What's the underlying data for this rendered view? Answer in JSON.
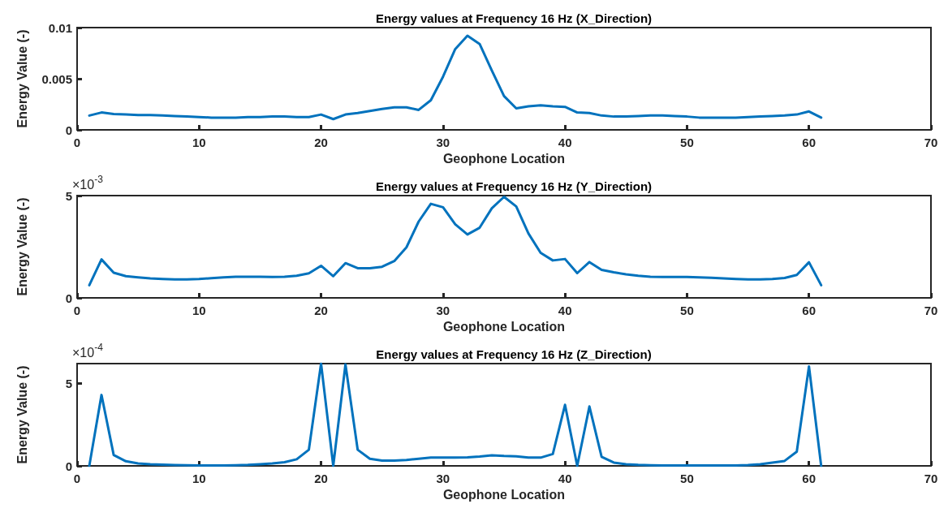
{
  "chart_data": [
    {
      "type": "line",
      "title": "Energy values at Frequency 16 Hz (X_Direction)",
      "xlabel": "Geophone Location",
      "ylabel": "Energy Value (-)",
      "x": [
        1,
        2,
        3,
        4,
        5,
        6,
        7,
        8,
        9,
        10,
        11,
        12,
        13,
        14,
        15,
        16,
        17,
        18,
        19,
        20,
        21,
        22,
        23,
        24,
        25,
        26,
        27,
        28,
        29,
        30,
        31,
        32,
        33,
        34,
        35,
        36,
        37,
        38,
        39,
        40,
        41,
        42,
        43,
        44,
        45,
        46,
        47,
        48,
        49,
        50,
        51,
        52,
        53,
        54,
        55,
        56,
        57,
        58,
        59,
        60,
        61
      ],
      "series": [
        {
          "color": "#0072bd",
          "values": [
            0.0014,
            0.0017,
            0.00155,
            0.0015,
            0.00145,
            0.00145,
            0.0014,
            0.00135,
            0.0013,
            0.00125,
            0.0012,
            0.0012,
            0.0012,
            0.00125,
            0.00125,
            0.0013,
            0.0013,
            0.00125,
            0.00125,
            0.0015,
            0.00105,
            0.0015,
            0.00165,
            0.00185,
            0.00205,
            0.0022,
            0.0022,
            0.00195,
            0.0029,
            0.0052,
            0.0079,
            0.0092,
            0.0084,
            0.0058,
            0.0033,
            0.0021,
            0.0023,
            0.0024,
            0.0023,
            0.00225,
            0.0017,
            0.00165,
            0.0014,
            0.0013,
            0.0013,
            0.00135,
            0.0014,
            0.0014,
            0.00135,
            0.0013,
            0.0012,
            0.0012,
            0.0012,
            0.0012,
            0.00125,
            0.0013,
            0.00135,
            0.0014,
            0.0015,
            0.0018,
            0.0012
          ]
        }
      ],
      "xlim": [
        0,
        70
      ],
      "xticks": [
        0,
        10,
        20,
        30,
        40,
        50,
        60,
        70
      ],
      "ylim": [
        0,
        0.01
      ],
      "yticks": [
        0,
        0.005,
        0.01
      ],
      "grid": false,
      "marker": "none",
      "line_style": "solid"
    },
    {
      "type": "line",
      "title": "Energy values at Frequency 16 Hz (Y_Direction)",
      "xlabel": "Geophone Location",
      "ylabel": "Energy Value (-)",
      "annotations": [
        "×10$^{-3}$"
      ],
      "x": [
        1,
        2,
        3,
        4,
        5,
        6,
        7,
        8,
        9,
        10,
        11,
        12,
        13,
        14,
        15,
        16,
        17,
        18,
        19,
        20,
        21,
        22,
        23,
        24,
        25,
        26,
        27,
        28,
        29,
        30,
        31,
        32,
        33,
        34,
        35,
        36,
        37,
        38,
        39,
        40,
        41,
        42,
        43,
        44,
        45,
        46,
        47,
        48,
        49,
        50,
        51,
        52,
        53,
        54,
        55,
        56,
        57,
        58,
        59,
        60,
        61
      ],
      "series": [
        {
          "color": "#0072bd",
          "values": [
            0.62,
            1.88,
            1.23,
            1.06,
            1.0,
            0.95,
            0.92,
            0.9,
            0.9,
            0.92,
            0.96,
            1.0,
            1.03,
            1.03,
            1.03,
            1.02,
            1.03,
            1.08,
            1.2,
            1.57,
            1.06,
            1.7,
            1.45,
            1.45,
            1.52,
            1.8,
            2.47,
            3.73,
            4.6,
            4.43,
            3.6,
            3.1,
            3.43,
            4.38,
            4.94,
            4.47,
            3.15,
            2.2,
            1.83,
            1.9,
            1.21,
            1.75,
            1.37,
            1.25,
            1.15,
            1.08,
            1.03,
            1.02,
            1.02,
            1.02,
            1.0,
            0.98,
            0.95,
            0.92,
            0.9,
            0.9,
            0.92,
            0.97,
            1.12,
            1.74,
            0.62
          ]
        }
      ],
      "xlim": [
        0,
        70
      ],
      "xticks": [
        0,
        10,
        20,
        30,
        40,
        50,
        60,
        70
      ],
      "ylim": [
        0,
        5
      ],
      "yticks": [
        0,
        5
      ],
      "grid": false,
      "marker": "none",
      "line_style": "solid"
    },
    {
      "type": "line",
      "title": "Energy values at Frequency 16 Hz (Z_Direction)",
      "xlabel": "Geophone Location",
      "ylabel": "Energy Value (-)",
      "annotations": [
        "×10$^{-4}$"
      ],
      "x": [
        1,
        2,
        3,
        4,
        5,
        6,
        7,
        8,
        9,
        10,
        11,
        12,
        13,
        14,
        15,
        16,
        17,
        18,
        19,
        20,
        21,
        22,
        23,
        24,
        25,
        26,
        27,
        28,
        29,
        30,
        31,
        32,
        33,
        34,
        35,
        36,
        37,
        38,
        39,
        40,
        41,
        42,
        43,
        44,
        45,
        46,
        47,
        48,
        49,
        50,
        51,
        52,
        53,
        54,
        55,
        56,
        57,
        58,
        59,
        60,
        61
      ],
      "series": [
        {
          "color": "#0072bd",
          "values": [
            0,
            4.3,
            0.66,
            0.28,
            0.15,
            0.1,
            0.07,
            0.05,
            0.04,
            0.03,
            0.03,
            0.03,
            0.04,
            0.06,
            0.1,
            0.15,
            0.22,
            0.4,
            0.98,
            6.2,
            0,
            6.15,
            0.98,
            0.43,
            0.32,
            0.32,
            0.36,
            0.43,
            0.5,
            0.5,
            0.5,
            0.52,
            0.57,
            0.64,
            0.6,
            0.58,
            0.5,
            0.5,
            0.72,
            3.7,
            0,
            3.6,
            0.55,
            0.2,
            0.1,
            0.06,
            0.04,
            0.03,
            0.02,
            0.02,
            0.02,
            0.02,
            0.02,
            0.03,
            0.05,
            0.1,
            0.2,
            0.3,
            0.86,
            6.03,
            0
          ]
        }
      ],
      "xlim": [
        0,
        70
      ],
      "xticks": [
        0,
        10,
        20,
        30,
        40,
        50,
        60,
        70
      ],
      "ylim": [
        0,
        6.2
      ],
      "yticks": [
        0,
        5
      ],
      "grid": false,
      "marker": "none",
      "line_style": "solid"
    }
  ]
}
